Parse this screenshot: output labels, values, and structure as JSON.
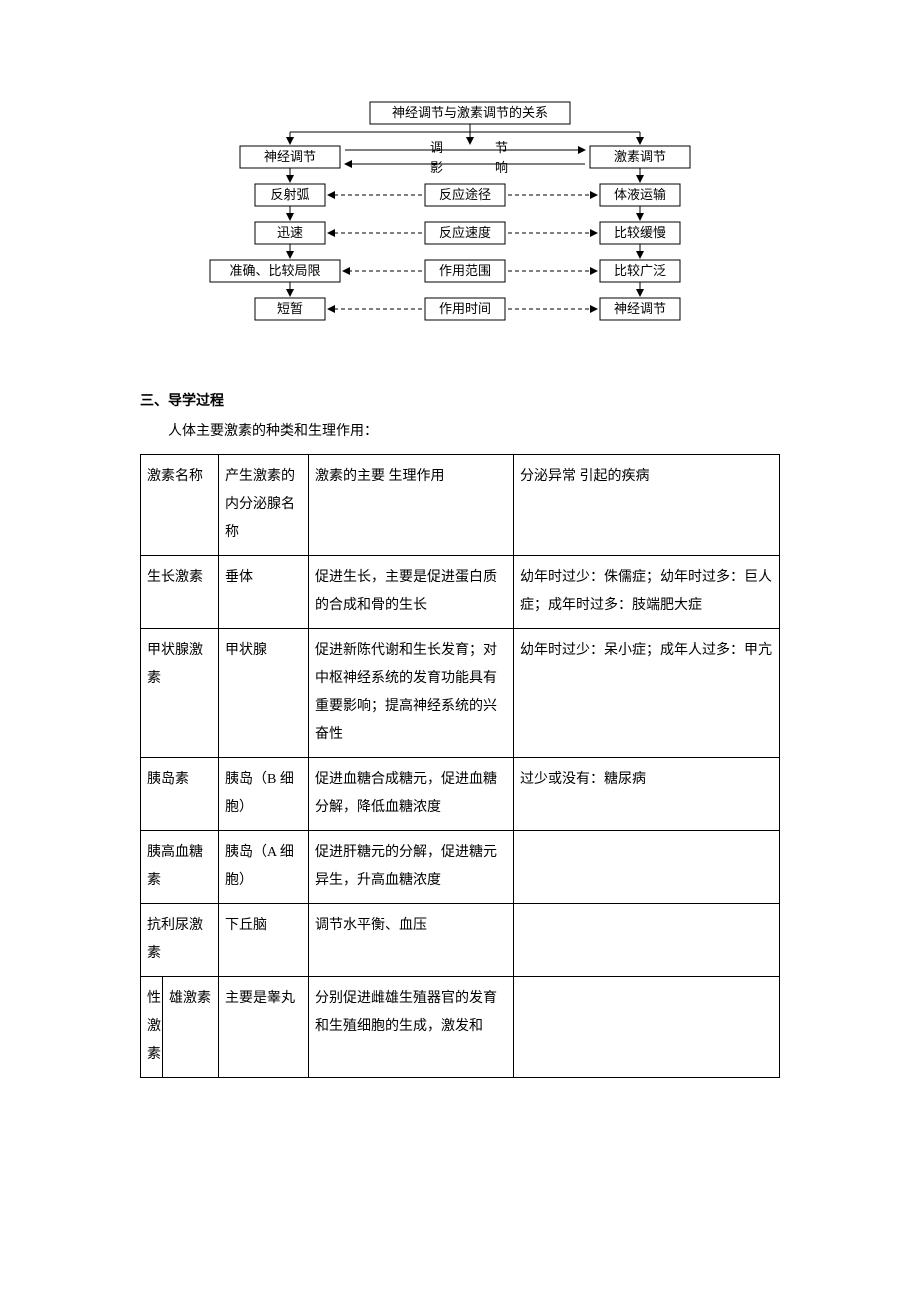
{
  "flowchart": {
    "title": "神经调节与激素调节的关系",
    "left_header": "神经调节",
    "right_header": "激素调节",
    "mid_top_a": "调",
    "mid_top_b": "节",
    "mid_bot_a": "影",
    "mid_bot_b": "响",
    "rows": [
      {
        "left": "反射弧",
        "mid": "反应途径",
        "right": "体液运输"
      },
      {
        "left": "迅速",
        "mid": "反应速度",
        "right": "比较缓慢"
      },
      {
        "left": "准确、比较局限",
        "mid": "作用范围",
        "right": "比较广泛"
      },
      {
        "left": "短暂",
        "mid": "作用时间",
        "right": "神经调节"
      }
    ],
    "colors": {
      "box_stroke": "#000000",
      "box_fill": "#ffffff",
      "solid_line": "#000000",
      "dash_line": "#000000",
      "text": "#000000"
    },
    "font_size": 13
  },
  "section_heading": "三、导学过程",
  "section_subtext": "人体主要激素的种类和生理作用：",
  "table": {
    "headers": {
      "name": "激素名称",
      "gland": "产生激素的内分泌腺名称",
      "func": "激素的主要\n生理作用",
      "disease": "分泌异常\n引起的疾病"
    },
    "rows": [
      {
        "name": "生长激素",
        "gland": "垂体",
        "func": "促进生长，主要是促进蛋白质的合成和骨的生长",
        "disease": "幼年时过少：侏儒症；幼年时过多：巨人症；成年时过多：肢端肥大症"
      },
      {
        "name": "甲状腺激素",
        "gland": "甲状腺",
        "func": "促进新陈代谢和生长发育；对中枢神经系统的发育功能具有重要影响；提高神经系统的兴奋性",
        "disease": "幼年时过少：呆小症；成年人过多：甲亢"
      },
      {
        "name": "胰岛素",
        "gland": "胰岛（B 细胞）",
        "func": "促进血糖合成糖元，促进血糖分解，降低血糖浓度",
        "disease": "过少或没有：糖尿病"
      },
      {
        "name": "胰高血糖素",
        "gland": "胰岛（A 细胞）",
        "func": "促进肝糖元的分解，促进糖元异生，升高血糖浓度",
        "disease": ""
      },
      {
        "name": "抗利尿激素",
        "gland": "下丘脑",
        "func": "调节水平衡、血压",
        "disease": ""
      }
    ],
    "sex_row": {
      "group": "性激素",
      "sub": "雄激素",
      "gland": "主要是睾丸",
      "func": "分别促进雌雄生殖器官的发育和生殖细胞的生成，激发和",
      "disease": ""
    }
  }
}
